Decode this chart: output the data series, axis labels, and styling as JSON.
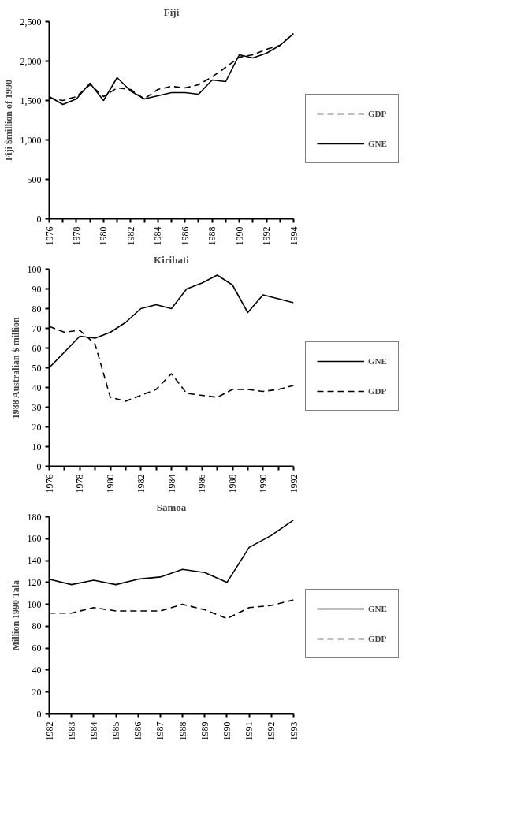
{
  "chart_data": [
    {
      "type": "line",
      "title": "Fiji",
      "ylabel": "Fiji $million of 1990",
      "x": [
        1976,
        1977,
        1978,
        1979,
        1980,
        1981,
        1982,
        1983,
        1984,
        1985,
        1986,
        1987,
        1988,
        1989,
        1990,
        1991,
        1992,
        1993,
        1994
      ],
      "xlim": [
        1976,
        1994
      ],
      "xticks": [
        1976,
        {
          "value": 1977,
          "label": null
        },
        1978,
        {
          "value": 1979,
          "label": null
        },
        1980,
        {
          "value": 1981,
          "label": null
        },
        1982,
        {
          "value": 1983,
          "label": null
        },
        1984,
        {
          "value": 1985,
          "label": null
        },
        1986,
        {
          "value": 1987,
          "label": null
        },
        1988,
        {
          "value": 1989,
          "label": null
        },
        1990,
        {
          "value": 1991,
          "label": null
        },
        1992,
        {
          "value": 1993,
          "label": null
        },
        1994
      ],
      "ylim": [
        0,
        2500
      ],
      "yticks": [
        0,
        500,
        {
          "value": 1000,
          "label": "1,000"
        },
        {
          "value": 1500,
          "label": "1,500"
        },
        {
          "value": 2000,
          "label": "2,000"
        },
        {
          "value": 2500,
          "label": "2,500"
        }
      ],
      "grid": false,
      "legend": "right",
      "marker": "none",
      "series": [
        {
          "name": "GDP",
          "color": "#000000",
          "line_style": "dashed",
          "values": [
            1530,
            1500,
            1550,
            1700,
            1550,
            1660,
            1640,
            1520,
            1640,
            1680,
            1660,
            1700,
            1800,
            1920,
            2050,
            2080,
            2150,
            2200,
            2350
          ]
        },
        {
          "name": "GNE",
          "color": "#000000",
          "line_style": "solid",
          "values": [
            1550,
            1450,
            1520,
            1720,
            1500,
            1790,
            1620,
            1520,
            1560,
            1600,
            1600,
            1580,
            1760,
            1740,
            2080,
            2040,
            2100,
            2200,
            2350
          ]
        }
      ]
    },
    {
      "type": "line",
      "title": "Kiribati",
      "ylabel": "1988 Australian $ million",
      "x": [
        1976,
        1977,
        1978,
        1979,
        1980,
        1981,
        1982,
        1983,
        1984,
        1985,
        1986,
        1987,
        1988,
        1989,
        1990,
        1991,
        1992
      ],
      "xlim": [
        1976,
        1992
      ],
      "xticks": [
        1976,
        {
          "value": 1977,
          "label": null
        },
        1978,
        {
          "value": 1979,
          "label": null
        },
        1980,
        {
          "value": 1981,
          "label": null
        },
        1982,
        {
          "value": 1983,
          "label": null
        },
        1984,
        {
          "value": 1985,
          "label": null
        },
        1986,
        {
          "value": 1987,
          "label": null
        },
        1988,
        {
          "value": 1989,
          "label": null
        },
        1990,
        {
          "value": 1991,
          "label": null
        },
        1992
      ],
      "ylim": [
        0,
        100
      ],
      "yticks": [
        0,
        10,
        20,
        30,
        40,
        50,
        60,
        70,
        80,
        90,
        100
      ],
      "grid": false,
      "legend": "right",
      "marker": "none",
      "series": [
        {
          "name": "GNE",
          "color": "#000000",
          "line_style": "solid",
          "values": [
            50,
            58,
            66,
            65,
            68,
            73,
            80,
            82,
            80,
            90,
            93,
            97,
            92,
            78,
            87,
            85,
            83
          ]
        },
        {
          "name": "GDP",
          "color": "#000000",
          "line_style": "dashed",
          "values": [
            71,
            68,
            69,
            62,
            35,
            33,
            36,
            39,
            47,
            37,
            36,
            35,
            39,
            39,
            38,
            39,
            41
          ]
        }
      ]
    },
    {
      "type": "line",
      "title": "Samoa",
      "ylabel": "Million 1990 Tala",
      "x": [
        1982,
        1983,
        1984,
        1985,
        1986,
        1987,
        1988,
        1989,
        1990,
        1991,
        1992,
        1993
      ],
      "xlim": [
        1982,
        1993
      ],
      "xticks": [
        1982,
        1983,
        1984,
        1985,
        1986,
        1987,
        1988,
        1989,
        1990,
        1991,
        1992,
        1993
      ],
      "ylim": [
        0,
        180
      ],
      "yticks": [
        0,
        20,
        40,
        60,
        80,
        100,
        120,
        140,
        160,
        180
      ],
      "grid": false,
      "legend": "right",
      "marker": "none",
      "series": [
        {
          "name": "GNE",
          "color": "#000000",
          "line_style": "solid",
          "values": [
            123,
            118,
            122,
            118,
            123,
            125,
            132,
            129,
            120,
            152,
            163,
            177
          ]
        },
        {
          "name": "GDP",
          "color": "#000000",
          "line_style": "dashed",
          "values": [
            92,
            92,
            97,
            94,
            94,
            94,
            100,
            95,
            87,
            97,
            99,
            104
          ]
        }
      ]
    }
  ]
}
